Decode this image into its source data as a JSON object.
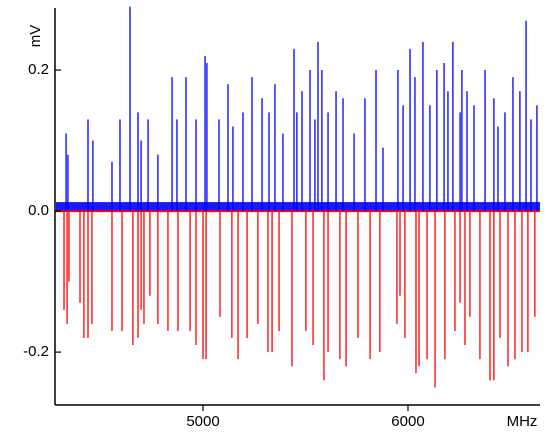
{
  "chart_data": {
    "type": "stick",
    "y_label": "mV",
    "x_label": "MHz",
    "xlim": [
      4278,
      6644
    ],
    "ylim": [
      -0.275,
      0.288
    ],
    "xticks": [
      5000,
      6000
    ],
    "yticks": [
      -0.2,
      {
        "value": 0,
        "label": "0.0"
      },
      0.2
    ],
    "series": [
      {
        "color": "#0000ff",
        "x": [
          4332,
          4341,
          4439,
          4463,
          4556,
          4595,
          4644,
          4683,
          4698,
          4732,
          4780,
          4849,
          4873,
          4917,
          4966,
          5010,
          5019,
          5078,
          5122,
          5146,
          5195,
          5239,
          5288,
          5322,
          5351,
          5390,
          5444,
          5458,
          5483,
          5522,
          5546,
          5561,
          5580,
          5610,
          5649,
          5683,
          5737,
          5790,
          5844,
          5878,
          5951,
          5976,
          6010,
          6034,
          6073,
          6107,
          6141,
          6176,
          6195,
          6219,
          6254,
          6263,
          6288,
          6322,
          6376,
          6419,
          6439,
          6473,
          6512,
          6546,
          6576,
          6600,
          6629
        ],
        "values": [
          0.11,
          0.08,
          0.13,
          0.1,
          0.07,
          0.13,
          0.29,
          0.14,
          0.1,
          0.13,
          0.08,
          0.19,
          0.13,
          0.19,
          0.13,
          0.22,
          0.21,
          0.13,
          0.18,
          0.12,
          0.14,
          0.19,
          0.16,
          0.14,
          0.18,
          0.11,
          0.23,
          0.14,
          0.17,
          0.2,
          0.13,
          0.24,
          0.2,
          0.14,
          0.17,
          0.16,
          0.11,
          0.16,
          0.2,
          0.09,
          0.2,
          0.15,
          0.23,
          0.19,
          0.24,
          0.15,
          0.2,
          0.21,
          0.17,
          0.24,
          0.14,
          0.2,
          0.17,
          0.15,
          0.2,
          0.16,
          0.12,
          0.14,
          0.19,
          0.17,
          0.27,
          0.13,
          0.15
        ]
      },
      {
        "color": "#ff0000",
        "x": [
          4322,
          4337,
          4346,
          4400,
          4419,
          4439,
          4458,
          4556,
          4605,
          4658,
          4683,
          4698,
          4712,
          4741,
          4780,
          4829,
          4878,
          4937,
          4966,
          5000,
          5015,
          5083,
          5141,
          5171,
          5215,
          5268,
          5317,
          5337,
          5371,
          5434,
          5502,
          5537,
          5590,
          5610,
          5668,
          5698,
          5756,
          5815,
          5863,
          5946,
          5961,
          5985,
          6039,
          6054,
          6093,
          6132,
          6180,
          6229,
          6254,
          6278,
          6302,
          6351,
          6400,
          6419,
          6449,
          6488,
          6522,
          6556,
          6585,
          6619
        ],
        "values": [
          -0.14,
          -0.16,
          -0.1,
          -0.13,
          -0.18,
          -0.18,
          -0.16,
          -0.17,
          -0.17,
          -0.19,
          -0.18,
          -0.14,
          -0.16,
          -0.12,
          -0.16,
          -0.17,
          -0.17,
          -0.17,
          -0.19,
          -0.21,
          -0.21,
          -0.15,
          -0.18,
          -0.21,
          -0.18,
          -0.16,
          -0.2,
          -0.2,
          -0.17,
          -0.22,
          -0.17,
          -0.19,
          -0.24,
          -0.2,
          -0.21,
          -0.22,
          -0.18,
          -0.21,
          -0.2,
          -0.16,
          -0.12,
          -0.18,
          -0.23,
          -0.22,
          -0.21,
          -0.25,
          -0.21,
          -0.17,
          -0.13,
          -0.19,
          -0.15,
          -0.21,
          -0.24,
          -0.24,
          -0.18,
          -0.22,
          -0.21,
          -0.2,
          -0.2,
          -0.15
        ]
      }
    ]
  }
}
